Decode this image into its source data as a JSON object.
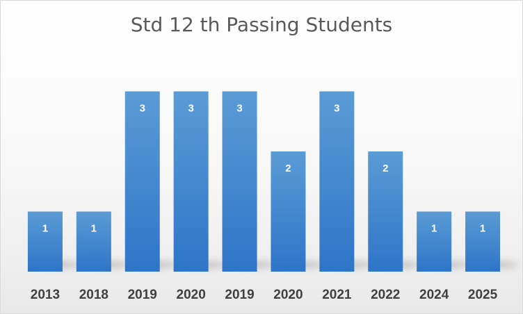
{
  "chart_data": {
    "type": "bar",
    "title": "Std 12 th Passing Students",
    "xlabel": "",
    "ylabel": "",
    "categories": [
      "2013",
      "2018",
      "2019",
      "2020",
      "2019",
      "2020",
      "2021",
      "2022",
      "2024",
      "2025"
    ],
    "values": [
      1,
      1,
      3,
      3,
      3,
      2,
      3,
      2,
      1,
      1
    ],
    "ylim": [
      0,
      5
    ],
    "grid": false,
    "legend": "none",
    "data_labels": true,
    "colors": {
      "bar_top": "#5b9bd5",
      "bar_bottom": "#2e75c8",
      "label": "#ffffff",
      "tick": "#404040"
    }
  }
}
